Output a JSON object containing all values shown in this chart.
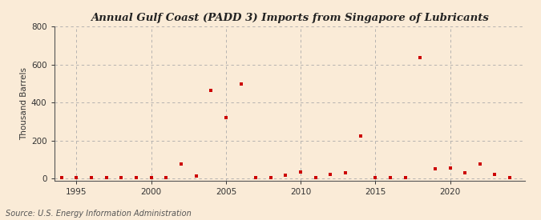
{
  "title": "Annual Gulf Coast (PADD 3) Imports from Singapore of Lubricants",
  "ylabel": "Thousand Barrels",
  "source": "Source: U.S. Energy Information Administration",
  "background_color": "#faebd7",
  "plot_background_color": "#faebd7",
  "marker_color": "#cc0000",
  "xlim": [
    1993.5,
    2025
  ],
  "ylim": [
    -10,
    800
  ],
  "yticks": [
    0,
    200,
    400,
    600,
    800
  ],
  "xticks": [
    1995,
    2000,
    2005,
    2010,
    2015,
    2020
  ],
  "data": {
    "1994": 3,
    "1995": 3,
    "1996": 3,
    "1997": 3,
    "1998": 3,
    "1999": 3,
    "2000": 3,
    "2001": 3,
    "2002": 75,
    "2003": 12,
    "2004": 462,
    "2005": 320,
    "2006": 495,
    "2007": 3,
    "2008": 3,
    "2009": 18,
    "2010": 35,
    "2011": 3,
    "2012": 20,
    "2013": 30,
    "2014": 225,
    "2015": 5,
    "2016": 3,
    "2017": 5,
    "2018": 635,
    "2019": 52,
    "2020": 55,
    "2021": 28,
    "2022": 75,
    "2023": 20,
    "2024": 3
  }
}
